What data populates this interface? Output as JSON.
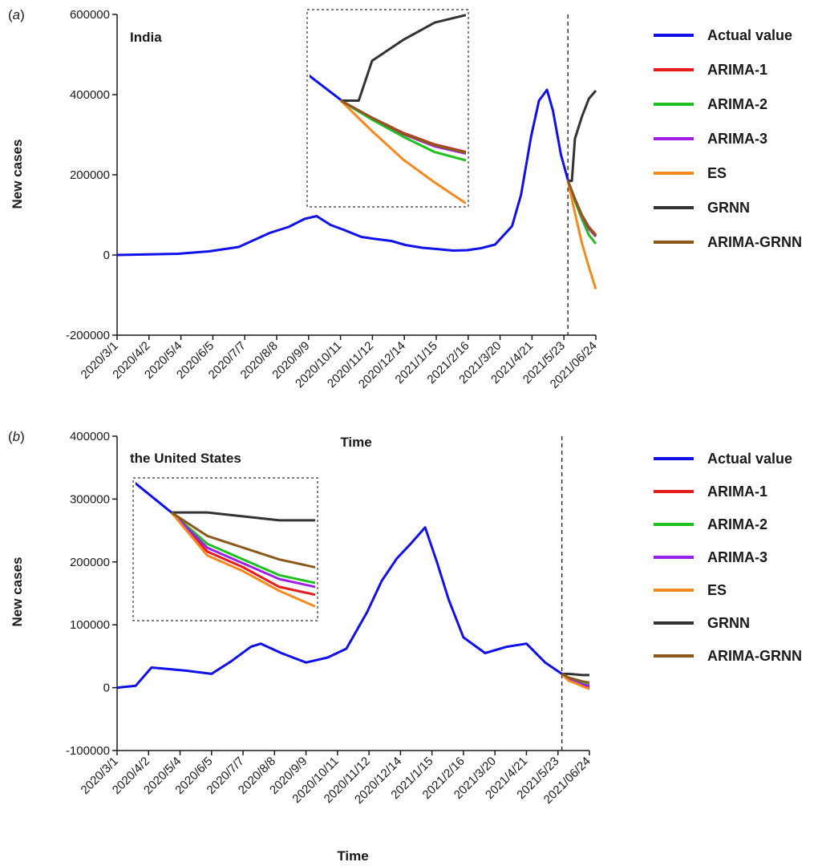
{
  "chart_data": [
    {
      "panel": "(a)",
      "panel_letter": "a",
      "type": "line",
      "annotation": "India",
      "xlabel": "Time",
      "ylabel": "New cases",
      "ylim": [
        -200000,
        600000
      ],
      "yticks": [
        -200000,
        0,
        200000,
        400000,
        600000
      ],
      "ytick_labels": [
        "-200000",
        "0",
        "200000",
        "400000",
        "600000"
      ],
      "xticks": [
        "2020/3/1",
        "2020/4/2",
        "2020/5/4",
        "2020/6/5",
        "2020/7/7",
        "2020/8/8",
        "2020/9/9",
        "2020/10/11",
        "2020/11/12",
        "2020/12/14",
        "2021/1/15",
        "2021/2/16",
        "2021/3/20",
        "2021/4/21",
        "2021/5/23",
        "2021/06/24"
      ],
      "xlim": [
        "2020-03-01",
        "2021-06-24"
      ],
      "forecast_start": "2021-05-27",
      "grid": false,
      "legend_position": "right",
      "series": [
        {
          "name": "Actual value",
          "color": "#1010e8",
          "x": [
            "2020-03-01",
            "2020-04-01",
            "2020-05-01",
            "2020-06-01",
            "2020-07-01",
            "2020-08-01",
            "2020-08-20",
            "2020-09-05",
            "2020-09-17",
            "2020-10-01",
            "2020-10-15",
            "2020-11-01",
            "2020-11-15",
            "2020-12-01",
            "2020-12-15",
            "2021-01-01",
            "2021-01-15",
            "2021-02-01",
            "2021-02-15",
            "2021-03-01",
            "2021-03-15",
            "2021-04-01",
            "2021-04-10",
            "2021-04-20",
            "2021-04-28",
            "2021-05-06",
            "2021-05-12",
            "2021-05-20",
            "2021-05-27"
          ],
          "values": [
            0,
            1500,
            3000,
            9000,
            20000,
            55000,
            70000,
            90000,
            97000,
            75000,
            62000,
            45000,
            40000,
            35000,
            25000,
            18000,
            15000,
            11000,
            12000,
            17000,
            26000,
            72000,
            150000,
            295000,
            385000,
            412000,
            360000,
            250000,
            187000
          ]
        },
        {
          "name": "ARIMA-1",
          "color": "#e81c1c",
          "x": [
            "2021-05-27",
            "2021-06-03",
            "2021-06-10",
            "2021-06-17",
            "2021-06-24"
          ],
          "values": [
            185000,
            140000,
            100000,
            70000,
            50000
          ]
        },
        {
          "name": "ARIMA-2",
          "color": "#1ec21e",
          "x": [
            "2021-05-27",
            "2021-06-03",
            "2021-06-10",
            "2021-06-17",
            "2021-06-24"
          ],
          "values": [
            185000,
            135000,
            90000,
            50000,
            28000
          ]
        },
        {
          "name": "ARIMA-3",
          "color": "#a020e8",
          "x": [
            "2021-05-27",
            "2021-06-03",
            "2021-06-10",
            "2021-06-17",
            "2021-06-24"
          ],
          "values": [
            185000,
            140000,
            97000,
            65000,
            46000
          ]
        },
        {
          "name": "ES",
          "color": "#f5891e",
          "x": [
            "2021-05-27",
            "2021-06-03",
            "2021-06-10",
            "2021-06-17",
            "2021-06-24"
          ],
          "values": [
            185000,
            105000,
            30000,
            -30000,
            -85000
          ]
        },
        {
          "name": "GRNN",
          "color": "#333333",
          "x": [
            "2021-05-27",
            "2021-05-31",
            "2021-06-03",
            "2021-06-10",
            "2021-06-17",
            "2021-06-24"
          ],
          "values": [
            185000,
            185000,
            290000,
            345000,
            390000,
            410000
          ]
        },
        {
          "name": "ARIMA-GRNN",
          "color": "#8b5a1a",
          "x": [
            "2021-05-27",
            "2021-06-03",
            "2021-06-10",
            "2021-06-17",
            "2021-06-24"
          ],
          "values": [
            185000,
            140000,
            98000,
            68000,
            48000
          ]
        }
      ]
    },
    {
      "panel": "(b)",
      "panel_letter": "b",
      "type": "line",
      "annotation": "the United States",
      "xlabel": "Time",
      "ylabel": "New cases",
      "ylim": [
        -100000,
        400000
      ],
      "yticks": [
        -100000,
        0,
        100000,
        200000,
        300000,
        400000
      ],
      "ytick_labels": [
        "-100000",
        "0",
        "100000",
        "200000",
        "300000",
        "400000"
      ],
      "xticks": [
        "2020/3/1",
        "2020/4/2",
        "2020/5/4",
        "2020/6/5",
        "2020/7/7",
        "2020/8/8",
        "2020/9/9",
        "2020/10/11",
        "2020/11/12",
        "2020/12/14",
        "2021/1/15",
        "2021/2/16",
        "2021/3/20",
        "2021/4/21",
        "2021/5/23",
        "2021/06/24"
      ],
      "xlim": [
        "2020-03-01",
        "2021-06-24"
      ],
      "forecast_start": "2021-05-27",
      "grid": false,
      "legend_position": "right",
      "series": [
        {
          "name": "Actual value",
          "color": "#1010e8",
          "x": [
            "2020-03-01",
            "2020-03-20",
            "2020-04-05",
            "2020-04-20",
            "2020-05-10",
            "2020-06-05",
            "2020-06-25",
            "2020-07-15",
            "2020-07-25",
            "2020-08-15",
            "2020-09-09",
            "2020-10-01",
            "2020-10-20",
            "2020-11-10",
            "2020-11-25",
            "2020-12-10",
            "2020-12-25",
            "2021-01-08",
            "2021-01-20",
            "2021-02-01",
            "2021-02-16",
            "2021-03-10",
            "2021-04-01",
            "2021-04-21",
            "2021-05-10",
            "2021-05-27"
          ],
          "values": [
            0,
            3000,
            32000,
            30000,
            27000,
            22000,
            42000,
            65000,
            70000,
            55000,
            40000,
            48000,
            62000,
            120000,
            170000,
            205000,
            230000,
            255000,
            200000,
            140000,
            80000,
            55000,
            65000,
            70000,
            40000,
            22000
          ]
        },
        {
          "name": "ARIMA-1",
          "color": "#e81c1c",
          "x": [
            "2021-05-27",
            "2021-06-03",
            "2021-06-10",
            "2021-06-17",
            "2021-06-24"
          ],
          "values": [
            22000,
            12000,
            8000,
            3000,
            1000
          ]
        },
        {
          "name": "ARIMA-2",
          "color": "#1ec21e",
          "x": [
            "2021-05-27",
            "2021-06-03",
            "2021-06-10",
            "2021-06-17",
            "2021-06-24"
          ],
          "values": [
            22000,
            14000,
            10000,
            6000,
            4000
          ]
        },
        {
          "name": "ARIMA-3",
          "color": "#a020e8",
          "x": [
            "2021-05-27",
            "2021-06-03",
            "2021-06-10",
            "2021-06-17",
            "2021-06-24"
          ],
          "values": [
            22000,
            13000,
            9000,
            5000,
            3000
          ]
        },
        {
          "name": "ES",
          "color": "#f5891e",
          "x": [
            "2021-05-27",
            "2021-06-03",
            "2021-06-10",
            "2021-06-17",
            "2021-06-24"
          ],
          "values": [
            22000,
            11000,
            7000,
            2000,
            -2000
          ]
        },
        {
          "name": "GRNN",
          "color": "#333333",
          "x": [
            "2021-05-27",
            "2021-06-03",
            "2021-06-10",
            "2021-06-17",
            "2021-06-24"
          ],
          "values": [
            22000,
            22000,
            21000,
            20000,
            20000
          ]
        },
        {
          "name": "ARIMA-GRNN",
          "color": "#8b5a1a",
          "x": [
            "2021-05-27",
            "2021-06-03",
            "2021-06-10",
            "2021-06-17",
            "2021-06-24"
          ],
          "values": [
            22000,
            16000,
            13000,
            10000,
            8000
          ]
        }
      ]
    }
  ]
}
